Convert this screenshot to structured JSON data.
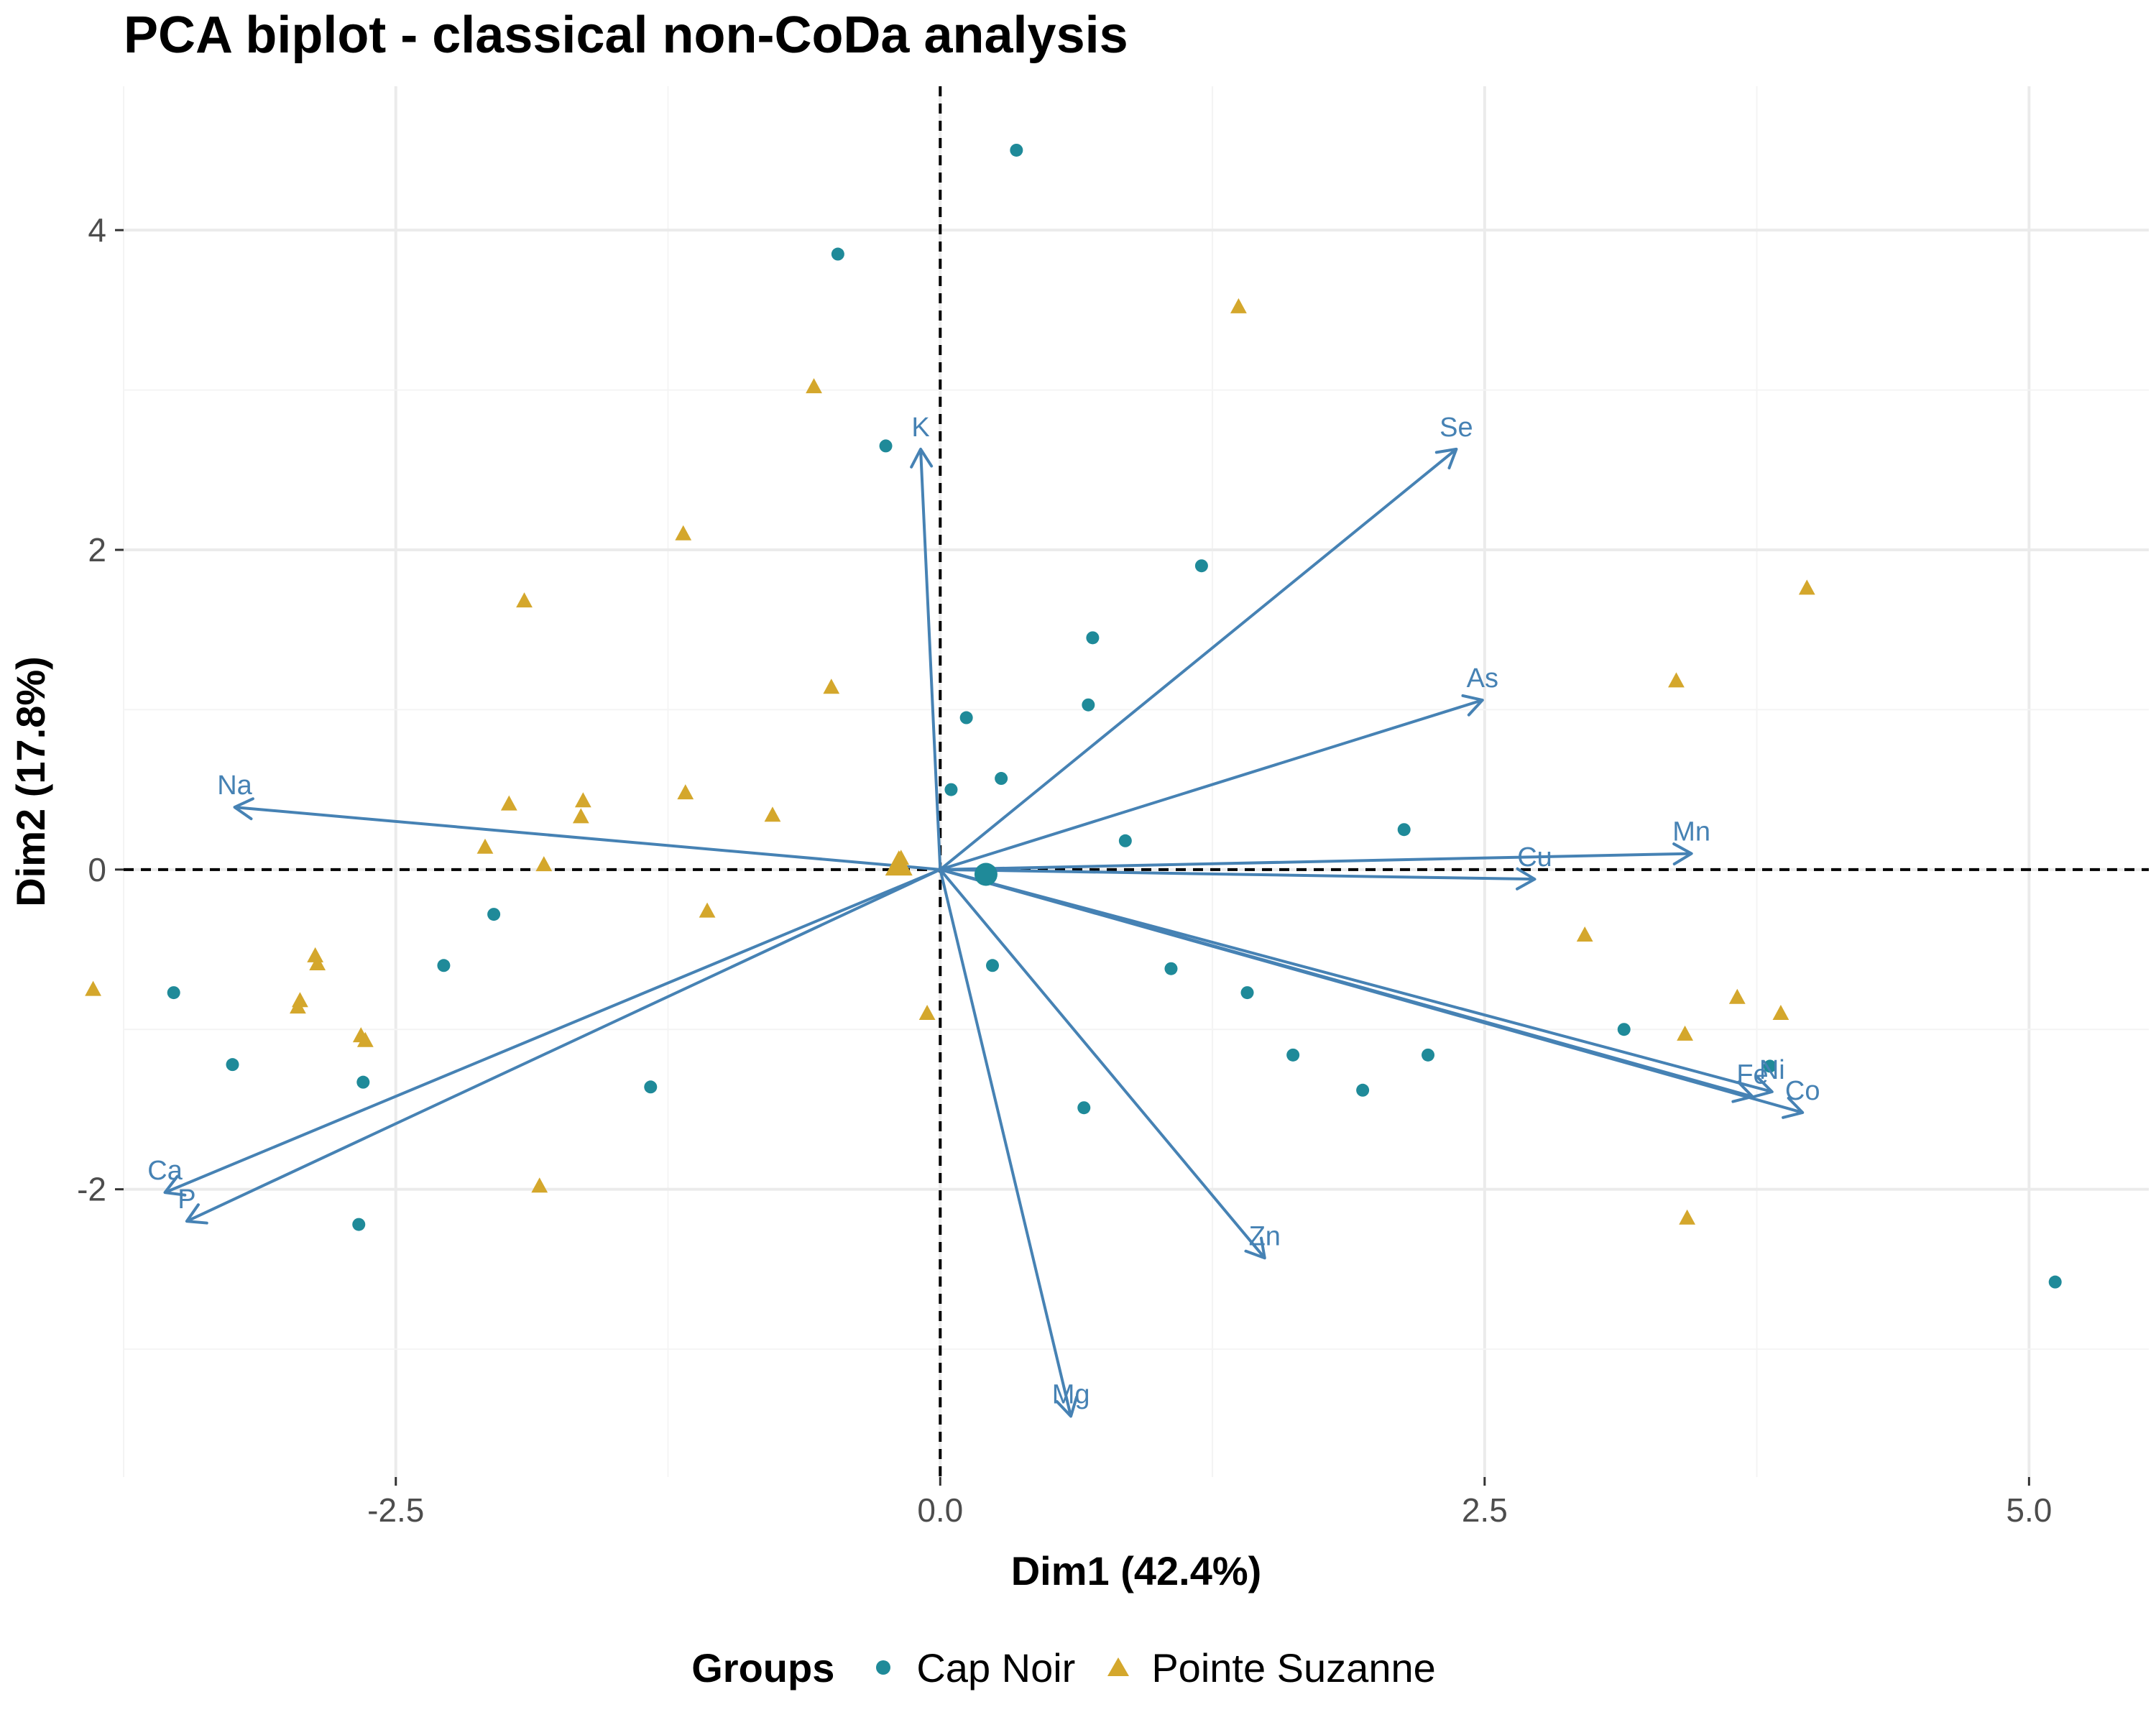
{
  "chart_data": {
    "type": "scatter",
    "title": "PCA biplot - classical non-CoDa analysis",
    "xlabel": "Dim1 (42.4%)",
    "ylabel": "Dim2 (17.8%)",
    "xlim": [
      -3.75,
      5.55
    ],
    "ylim": [
      -3.8,
      4.9
    ],
    "x_ticks": [
      -2.5,
      0.0,
      2.5,
      5.0
    ],
    "x_tick_labels": [
      "-2.5",
      "0.0",
      "2.5",
      "5.0"
    ],
    "y_ticks": [
      -2,
      0,
      2,
      4
    ],
    "y_tick_labels": [
      "-2",
      "0",
      "2",
      "4"
    ],
    "grid": true,
    "reference_lines": {
      "x": 0,
      "y": 0,
      "style": "dashed"
    },
    "legend": {
      "title": "Groups",
      "position": "bottom"
    },
    "series": [
      {
        "name": "Cap Noir",
        "marker": "circle",
        "color": "#1f8a99",
        "points": [
          [
            0.35,
            4.5
          ],
          [
            -0.47,
            3.85
          ],
          [
            -0.25,
            2.65
          ],
          [
            1.2,
            1.9
          ],
          [
            0.7,
            1.45
          ],
          [
            0.12,
            0.95
          ],
          [
            0.68,
            1.03
          ],
          [
            0.05,
            0.5
          ],
          [
            0.28,
            0.57
          ],
          [
            0.85,
            0.18
          ],
          [
            2.13,
            0.25
          ],
          [
            -2.05,
            -0.28
          ],
          [
            -2.28,
            -0.6
          ],
          [
            0.24,
            -0.6
          ],
          [
            1.06,
            -0.62
          ],
          [
            1.41,
            -0.77
          ],
          [
            -3.52,
            -0.77
          ],
          [
            -3.25,
            -1.22
          ],
          [
            -2.65,
            -1.33
          ],
          [
            -1.33,
            -1.36
          ],
          [
            1.62,
            -1.16
          ],
          [
            2.24,
            -1.16
          ],
          [
            1.94,
            -1.38
          ],
          [
            3.14,
            -1.0
          ],
          [
            0.66,
            -1.49
          ],
          [
            -2.67,
            -2.22
          ],
          [
            5.12,
            -2.58
          ],
          [
            3.81,
            -1.23
          ]
        ]
      },
      {
        "name": "Pointe Suzanne",
        "marker": "triangle",
        "color": "#d4a72c",
        "points": [
          [
            1.37,
            3.52
          ],
          [
            -0.58,
            3.02
          ],
          [
            -1.18,
            2.1
          ],
          [
            -1.91,
            1.68
          ],
          [
            -0.5,
            1.14
          ],
          [
            3.38,
            1.18
          ],
          [
            3.98,
            1.76
          ],
          [
            -1.64,
            0.43
          ],
          [
            -1.98,
            0.41
          ],
          [
            -1.17,
            0.48
          ],
          [
            -0.77,
            0.34
          ],
          [
            -1.65,
            0.33
          ],
          [
            -2.09,
            0.14
          ],
          [
            -1.82,
            0.03
          ],
          [
            -0.18,
            0.07
          ],
          [
            -0.2,
            0.03
          ],
          [
            2.96,
            -0.41
          ],
          [
            3.66,
            -0.8
          ],
          [
            3.86,
            -0.9
          ],
          [
            3.42,
            -1.03
          ],
          [
            3.43,
            -2.18
          ],
          [
            -0.06,
            -0.9
          ],
          [
            -2.87,
            -0.54
          ],
          [
            -2.86,
            -0.59
          ],
          [
            -2.94,
            -0.82
          ],
          [
            -2.95,
            -0.86
          ],
          [
            -2.66,
            -1.04
          ],
          [
            -2.64,
            -1.07
          ],
          [
            -3.89,
            -0.75
          ],
          [
            -1.84,
            -1.98
          ],
          [
            -1.07,
            -0.26
          ]
        ]
      }
    ],
    "group_centroids": [
      {
        "series": "Cap Noir",
        "x": 0.21,
        "y": -0.03
      },
      {
        "series": "Pointe Suzanne",
        "x": -0.19,
        "y": 0.03
      }
    ],
    "variable_color": "#4682b4",
    "variables": [
      {
        "name": "K",
        "x": -0.09,
        "y": 2.63
      },
      {
        "name": "Se",
        "x": 2.37,
        "y": 2.63
      },
      {
        "name": "As",
        "x": 2.49,
        "y": 1.06
      },
      {
        "name": "Na",
        "x": -3.24,
        "y": 0.39
      },
      {
        "name": "Mn",
        "x": 3.45,
        "y": 0.1
      },
      {
        "name": "Cu",
        "x": 2.73,
        "y": -0.06
      },
      {
        "name": "Ni",
        "x": 3.82,
        "y": -1.39
      },
      {
        "name": "Fe",
        "x": 3.73,
        "y": -1.42
      },
      {
        "name": "Co",
        "x": 3.96,
        "y": -1.52
      },
      {
        "name": "Ca",
        "x": -3.56,
        "y": -2.02
      },
      {
        "name": "P",
        "x": -3.46,
        "y": -2.2
      },
      {
        "name": "Zn",
        "x": 1.49,
        "y": -2.43
      },
      {
        "name": "Mg",
        "x": 0.6,
        "y": -3.42
      }
    ]
  }
}
